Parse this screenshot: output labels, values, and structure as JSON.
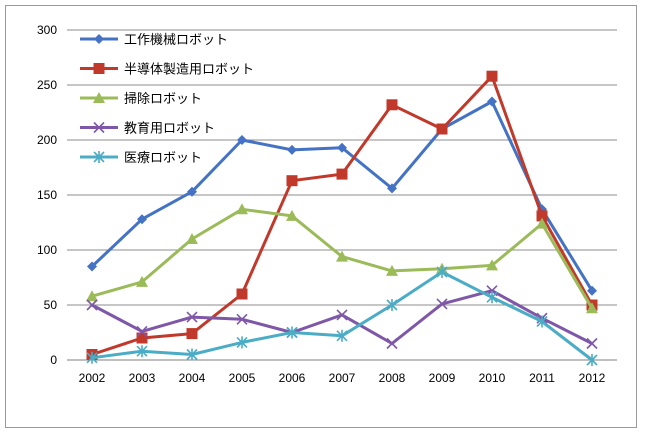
{
  "chart_data": {
    "type": "line",
    "title": "",
    "xlabel": "",
    "ylabel": "",
    "x": [
      "2002",
      "2003",
      "2004",
      "2005",
      "2006",
      "2007",
      "2008",
      "2009",
      "2010",
      "2011",
      "2012"
    ],
    "ylim": [
      0,
      300
    ],
    "yticks": [
      0,
      50,
      100,
      150,
      200,
      250,
      300
    ],
    "grid": true,
    "legend_position": "top-left, inside plot",
    "series": [
      {
        "name": "工作機械ロボット",
        "color": "#4472C4",
        "marker": "diamond",
        "values": [
          85,
          128,
          153,
          200,
          191,
          193,
          156,
          210,
          235,
          137,
          63
        ]
      },
      {
        "name": "半導体製造用ロボット",
        "color": "#C0392B",
        "marker": "square",
        "values": [
          5,
          20,
          24,
          60,
          163,
          169,
          232,
          210,
          258,
          131,
          50
        ]
      },
      {
        "name": "掃除ロボット",
        "color": "#9BBB59",
        "marker": "triangle",
        "values": [
          58,
          71,
          110,
          137,
          131,
          94,
          81,
          83,
          86,
          124,
          47
        ]
      },
      {
        "name": "教育用ロボット",
        "color": "#7E57A8",
        "marker": "x",
        "values": [
          50,
          26,
          39,
          37,
          25,
          41,
          15,
          51,
          63,
          38,
          15
        ]
      },
      {
        "name": "医療ロボット",
        "color": "#4BACC6",
        "marker": "asterisk",
        "values": [
          2,
          8,
          5,
          16,
          25,
          22,
          50,
          80,
          57,
          35,
          0
        ]
      }
    ]
  }
}
